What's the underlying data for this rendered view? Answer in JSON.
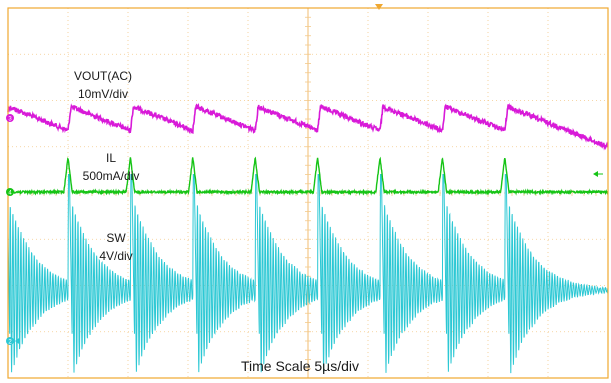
{
  "chart_data": {
    "type": "line",
    "title": "",
    "x_unit": "µs",
    "x_range": [
      -25,
      25
    ],
    "time_per_div": "5µs/div",
    "grid": true,
    "grid_divisions": {
      "x": 10,
      "y": 8
    },
    "switching_period_us": 5.2,
    "switching_edges_us": [
      -20.0,
      -14.8,
      -9.6,
      -4.4,
      0.8,
      6.0,
      11.2,
      16.4
    ],
    "series": [
      {
        "key": "vout",
        "name": "VOUT(AC)",
        "scale": "10mV/div",
        "color": "#d81ad8",
        "marker": "3",
        "description": "sawtooth ripple: step up at each switching edge, ~0.6 div amplitude"
      },
      {
        "key": "il",
        "name": "IL",
        "scale": "500mA/div",
        "color": "#16c416",
        "marker": "4",
        "description": "narrow ~0.8 div current spike at each switching edge, flat between"
      },
      {
        "key": "sw",
        "name": "SW",
        "scale": "4V/div",
        "color": "#2cc8d4",
        "marker": "2",
        "description": "pulse ~3.6 div high at each edge followed by decaying ringing"
      }
    ],
    "labels": {
      "vout_name": "VOUT(AC)",
      "vout_scale": "10mV/div",
      "il_name": "IL",
      "il_scale": "500mA/div",
      "sw_name": "SW",
      "sw_scale": "4V/div",
      "time_scale": "Time Scale 5µs/div"
    },
    "channel_markers": {
      "vout": "3",
      "il": "4",
      "sw": "2"
    }
  }
}
